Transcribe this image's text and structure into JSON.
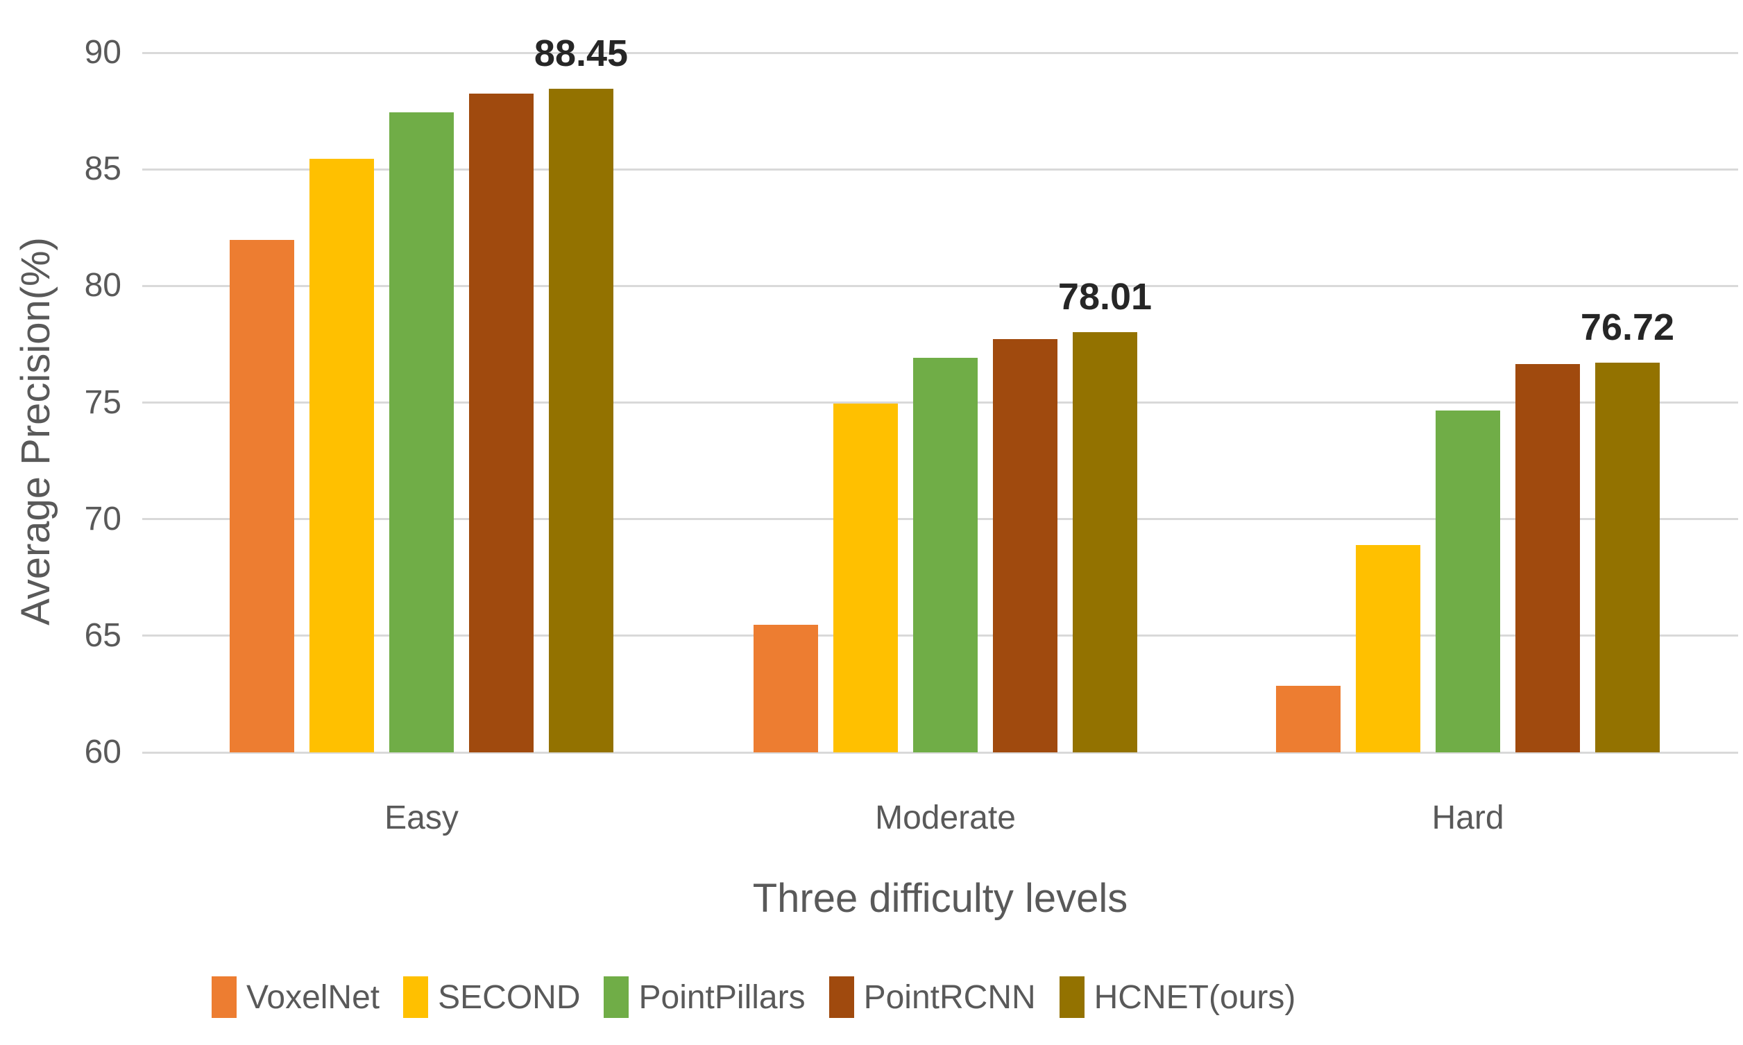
{
  "chart_data": {
    "type": "bar",
    "title": "",
    "xlabel": "Three difficulty levels",
    "ylabel": "Average Precision(%)",
    "categories": [
      "Easy",
      "Moderate",
      "Hard"
    ],
    "series": [
      {
        "name": "VoxelNet",
        "color": "#ED7D31",
        "values": [
          81.97,
          65.46,
          62.85
        ]
      },
      {
        "name": "SECOND",
        "color": "#FFC000",
        "values": [
          85.45,
          74.97,
          68.9
        ]
      },
      {
        "name": "PointPillars",
        "color": "#70AD47",
        "values": [
          87.45,
          76.91,
          74.65
        ]
      },
      {
        "name": "PointRCNN",
        "color": "#A04A0E",
        "values": [
          88.26,
          77.73,
          76.65
        ]
      },
      {
        "name": "HCNET(ours)",
        "color": "#937200",
        "values": [
          88.45,
          78.01,
          76.72
        ]
      }
    ],
    "annotations": [
      {
        "text": "88.45",
        "category": "Easy",
        "series": "HCNET(ours)"
      },
      {
        "text": "78.01",
        "category": "Moderate",
        "series": "HCNET(ours)"
      },
      {
        "text": "76.72",
        "category": "Hard",
        "series": "HCNET(ours)"
      }
    ],
    "ylim": [
      60,
      90
    ],
    "yticks": [
      60,
      65,
      70,
      75,
      80,
      85,
      90
    ],
    "grid": true,
    "legend_position": "bottom"
  },
  "colors": {
    "grid": "#d9d9d9",
    "axis_text": "#595959",
    "data_label_text": "#262626",
    "background": "#ffffff"
  }
}
